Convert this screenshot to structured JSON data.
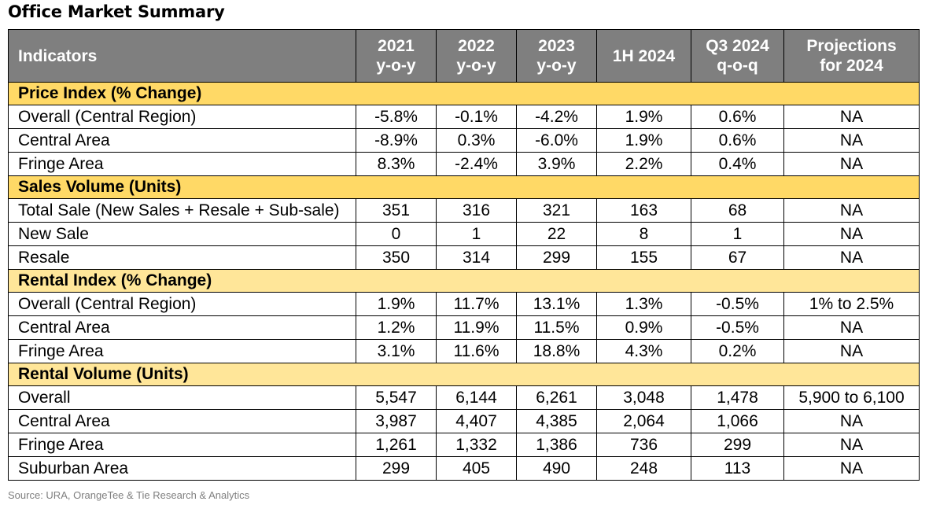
{
  "title": "Office Market Summary",
  "header": {
    "indicators": "Indicators",
    "col_2021": [
      "2021",
      "y-o-y"
    ],
    "col_2022": [
      "2022",
      "y-o-y"
    ],
    "col_2023": [
      "2023",
      "y-o-y"
    ],
    "col_1h2024": [
      "1H 2024"
    ],
    "col_q32024": [
      "Q3 2024",
      "q-o-q"
    ],
    "col_proj": [
      "Projections",
      "for 2024"
    ]
  },
  "sections": [
    {
      "key": "price",
      "title": "Price Index (% Change)",
      "rows": [
        {
          "label": "Overall (Central Region)",
          "values": [
            "-5.8%",
            "-0.1%",
            "-4.2%",
            "1.9%",
            "0.6%",
            "NA"
          ]
        },
        {
          "label": "Central Area",
          "values": [
            "-8.9%",
            "0.3%",
            "-6.0%",
            "1.9%",
            "0.6%",
            "NA"
          ]
        },
        {
          "label": "Fringe Area",
          "values": [
            "8.3%",
            "-2.4%",
            "3.9%",
            "2.2%",
            "0.4%",
            "NA"
          ]
        }
      ]
    },
    {
      "key": "sales",
      "title": "Sales Volume (Units)",
      "rows": [
        {
          "label": "Total Sale (New Sales + Resale + Sub-sale)",
          "values": [
            "351",
            "316",
            "321",
            "163",
            "68",
            "NA"
          ]
        },
        {
          "label": "New Sale",
          "values": [
            "0",
            "1",
            "22",
            "8",
            "1",
            "NA"
          ]
        },
        {
          "label": "Resale",
          "values": [
            "350",
            "314",
            "299",
            "155",
            "67",
            "NA"
          ]
        }
      ]
    },
    {
      "key": "rental",
      "title": "Rental Index (% Change)",
      "rows": [
        {
          "label": "Overall (Central Region)",
          "values": [
            "1.9%",
            "11.7%",
            "13.1%",
            "1.3%",
            "-0.5%",
            "1% to 2.5%"
          ]
        },
        {
          "label": "Central Area",
          "values": [
            "1.2%",
            "11.9%",
            "11.5%",
            "0.9%",
            "-0.5%",
            "NA"
          ]
        },
        {
          "label": "Fringe Area",
          "values": [
            "3.1%",
            "11.6%",
            "18.8%",
            "4.3%",
            "0.2%",
            "NA"
          ]
        }
      ]
    },
    {
      "key": "rvol",
      "title": "Rental Volume (Units)",
      "rows": [
        {
          "label": "Overall",
          "values": [
            "5,547",
            "6,144",
            "6,261",
            "3,048",
            "1,478",
            "5,900 to 6,100"
          ]
        },
        {
          "label": "Central Area",
          "values": [
            "3,987",
            "4,407",
            "4,385",
            "2,064",
            "1,066",
            "NA"
          ]
        },
        {
          "label": "Fringe Area",
          "values": [
            "1,261",
            "1,332",
            "1,386",
            "736",
            "299",
            "NA"
          ]
        },
        {
          "label": "Suburban Area",
          "values": [
            "299",
            "405",
            "490",
            "248",
            "113",
            "NA"
          ]
        }
      ]
    }
  ],
  "source": "Source: URA, OrangeTee & Tie Research & Analytics",
  "colors": {
    "header_bg": "#7f7f7f",
    "section_dark": "#ffd966",
    "section_light": "#ffe699",
    "source_text": "#7f7f7f"
  }
}
